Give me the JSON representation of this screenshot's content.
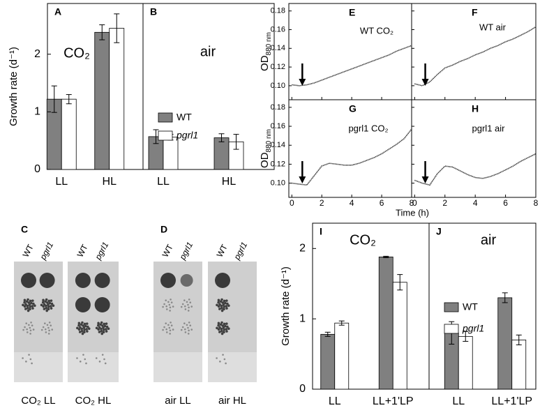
{
  "chart_data": [
    {
      "type": "bar",
      "ylabel": "Growth rate (d⁻¹)",
      "panels": [
        {
          "label": "A",
          "annotation": "CO₂"
        },
        {
          "label": "B",
          "annotation": "air"
        }
      ],
      "categories": [
        "LL",
        "HL",
        "LL",
        "HL"
      ],
      "series": [
        {
          "name": "WT",
          "color": "#808080",
          "values": [
            1.22,
            2.38,
            0.57,
            0.55
          ],
          "errors": [
            0.23,
            0.13,
            0.12,
            0.07
          ]
        },
        {
          "name": "pgrl1",
          "color": "#ffffff",
          "values": [
            1.22,
            2.45,
            0.56,
            0.48
          ],
          "errors": [
            0.08,
            0.25,
            0.05,
            0.13
          ]
        }
      ],
      "ylim": [
        0,
        2.88
      ],
      "yticks": [
        0,
        1,
        2
      ]
    },
    {
      "type": "line",
      "ylabel": "OD",
      "ylabel_sub": "880 nm",
      "xlabel": "Time (h)",
      "xlim": [
        -0.2,
        8
      ],
      "xticks": [
        0,
        2,
        4,
        6,
        8
      ],
      "ylim": [
        0.085,
        0.188
      ],
      "yticks": [
        {
          "value": 0.1,
          "label": "0.10"
        },
        0.12,
        0.14,
        0.16,
        0.18
      ],
      "panels": [
        {
          "label": "E",
          "annotation": "WT CO₂",
          "x": [
            0,
            0.5,
            1,
            1.5,
            2,
            2.5,
            3,
            3.5,
            4,
            4.5,
            5,
            5.5,
            6,
            6.5,
            7,
            7.5,
            8
          ],
          "values": [
            0.101,
            0.1,
            0.101,
            0.103,
            0.106,
            0.109,
            0.112,
            0.115,
            0.118,
            0.121,
            0.124,
            0.127,
            0.13,
            0.133,
            0.137,
            0.14,
            0.143
          ]
        },
        {
          "label": "F",
          "annotation": "WT air",
          "x": [
            0,
            0.5,
            1,
            1.5,
            2,
            2.5,
            3,
            3.5,
            4,
            4.5,
            5,
            5.5,
            6,
            6.5,
            7,
            7.5,
            8
          ],
          "values": [
            0.102,
            0.1,
            0.104,
            0.112,
            0.119,
            0.122,
            0.126,
            0.129,
            0.133,
            0.136,
            0.14,
            0.143,
            0.147,
            0.15,
            0.154,
            0.158,
            0.163
          ]
        },
        {
          "label": "G",
          "annotation": "pgrl1 CO₂",
          "x": [
            0,
            0.5,
            1,
            1.5,
            2,
            2.5,
            3,
            3.5,
            4,
            4.5,
            5,
            5.5,
            6,
            6.5,
            7,
            7.5,
            8
          ],
          "values": [
            0.1,
            0.099,
            0.098,
            0.108,
            0.118,
            0.121,
            0.12,
            0.119,
            0.119,
            0.121,
            0.124,
            0.127,
            0.131,
            0.136,
            0.141,
            0.147,
            0.157
          ]
        },
        {
          "label": "H",
          "annotation": "pgrl1 air",
          "x": [
            0,
            0.5,
            1,
            1.5,
            2,
            2.5,
            3,
            3.5,
            4,
            4.5,
            5,
            5.5,
            6,
            6.5,
            7,
            7.5,
            8
          ],
          "values": [
            0.103,
            0.1,
            0.098,
            0.11,
            0.118,
            0.117,
            0.113,
            0.109,
            0.106,
            0.105,
            0.107,
            0.11,
            0.114,
            0.118,
            0.123,
            0.127,
            0.131
          ]
        }
      ]
    },
    {
      "type": "bar",
      "ylabel": "Growth rate (d⁻¹)",
      "panels": [
        {
          "label": "I",
          "annotation": "CO₂"
        },
        {
          "label": "J",
          "annotation": "air"
        }
      ],
      "categories": [
        "LL",
        "LL+1'LP",
        "LL",
        "LL+1'LP"
      ],
      "series": [
        {
          "name": "WT",
          "color": "#808080",
          "values": [
            0.78,
            1.88,
            0.8,
            1.3
          ],
          "errors": [
            0.03,
            0.01,
            0.16,
            0.07
          ]
        },
        {
          "name": "pgrl1",
          "color": "#ffffff",
          "values": [
            0.94,
            1.52,
            0.75,
            0.7
          ],
          "errors": [
            0.03,
            0.11,
            0.07,
            0.07
          ]
        }
      ],
      "ylim": [
        0,
        2.36
      ],
      "yticks": [
        0,
        1,
        2
      ]
    }
  ],
  "photos": [
    {
      "label": "C",
      "plates": [
        {
          "columns": [
            "WT",
            "pgrl1"
          ],
          "caption": "CO₂ LL"
        },
        {
          "columns": [
            "WT",
            "pgrl1"
          ],
          "caption": "CO₂ HL"
        }
      ]
    },
    {
      "label": "D",
      "plates": [
        {
          "columns": [
            "WT",
            "pgrl1"
          ],
          "caption": "air LL"
        },
        {
          "columns": [
            "WT",
            "pgrl1"
          ],
          "caption": "air HL"
        }
      ]
    }
  ]
}
